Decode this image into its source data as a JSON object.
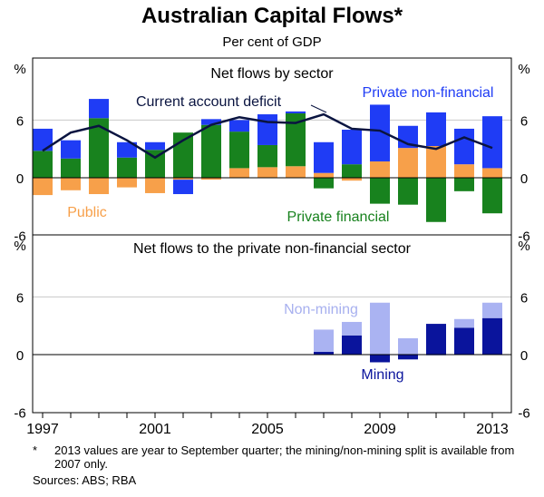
{
  "title": "Australian Capital Flows*",
  "subtitle": "Per cent of GDP",
  "footnote_marker": "*",
  "footnote_text": "2013 values are year to September quarter; the mining/non-mining split is available from 2007 only.",
  "sources": "Sources: ABS; RBA",
  "unit_label": "%",
  "x_ticks": [
    "1997",
    "2001",
    "2005",
    "2009",
    "2013"
  ],
  "colors": {
    "private_non_financial": "#1f3cf5",
    "private_financial": "#18821e",
    "public": "#f7a04a",
    "line": "#0a1440",
    "non_mining": "#aab3f2",
    "mining": "#0a149c",
    "text_blue": "#1f3cf5",
    "text_green": "#18821e",
    "text_orange": "#f7a04a",
    "text_nonmining": "#a7b0ef",
    "text_mining": "#0a149c"
  },
  "chart_data": [
    {
      "type": "bar",
      "title": "Net flows by sector",
      "ylabel": "%",
      "ylim": [
        -6,
        12
      ],
      "yticks": [
        -6,
        0,
        6
      ],
      "categories": [
        "1997",
        "1998",
        "1999",
        "2000",
        "2001",
        "2002",
        "2003",
        "2004",
        "2005",
        "2006",
        "2007",
        "2008",
        "2009",
        "2010",
        "2011",
        "2012",
        "2013"
      ],
      "series": [
        {
          "name": "Private non-financial",
          "label": "Private non-financial",
          "values": [
            2.3,
            1.9,
            2.0,
            1.6,
            0.8,
            -1.5,
            0.6,
            1.2,
            3.2,
            0.2,
            3.2,
            3.6,
            5.9,
            2.3,
            3.5,
            3.7,
            5.4
          ]
        },
        {
          "name": "Private financial",
          "label": "Private financial",
          "values": [
            2.8,
            2.0,
            6.2,
            2.1,
            2.9,
            4.7,
            5.5,
            3.8,
            2.3,
            5.5,
            -1.1,
            1.4,
            -2.7,
            -2.8,
            -4.6,
            -1.4,
            -3.7
          ]
        },
        {
          "name": "Public",
          "label": "Public",
          "values": [
            -1.8,
            -1.3,
            -1.7,
            -1.0,
            -1.6,
            -0.2,
            -0.2,
            1.0,
            1.1,
            1.2,
            0.5,
            -0.3,
            1.7,
            3.1,
            3.3,
            1.4,
            1.0
          ]
        }
      ],
      "line": {
        "name": "Current account deficit",
        "label": "Current account deficit",
        "values": [
          2.8,
          4.7,
          5.4,
          3.9,
          2.1,
          3.9,
          5.5,
          6.3,
          5.8,
          5.7,
          6.6,
          5.1,
          4.9,
          3.5,
          3.0,
          4.2,
          3.1
        ]
      }
    },
    {
      "type": "bar",
      "title": "Net flows to the private non-financial sector",
      "ylabel": "%",
      "ylim": [
        -6,
        12
      ],
      "yticks": [
        -6,
        0,
        6
      ],
      "categories": [
        "2007",
        "2008",
        "2009",
        "2010",
        "2011",
        "2012",
        "2013"
      ],
      "series": [
        {
          "name": "Mining",
          "label": "Mining",
          "values": [
            0.3,
            2.0,
            -0.8,
            -0.5,
            3.2,
            2.8,
            3.8
          ]
        },
        {
          "name": "Non-mining",
          "label": "Non-mining",
          "values": [
            2.3,
            1.4,
            5.4,
            1.7,
            -0.1,
            0.9,
            1.6
          ]
        }
      ]
    }
  ]
}
